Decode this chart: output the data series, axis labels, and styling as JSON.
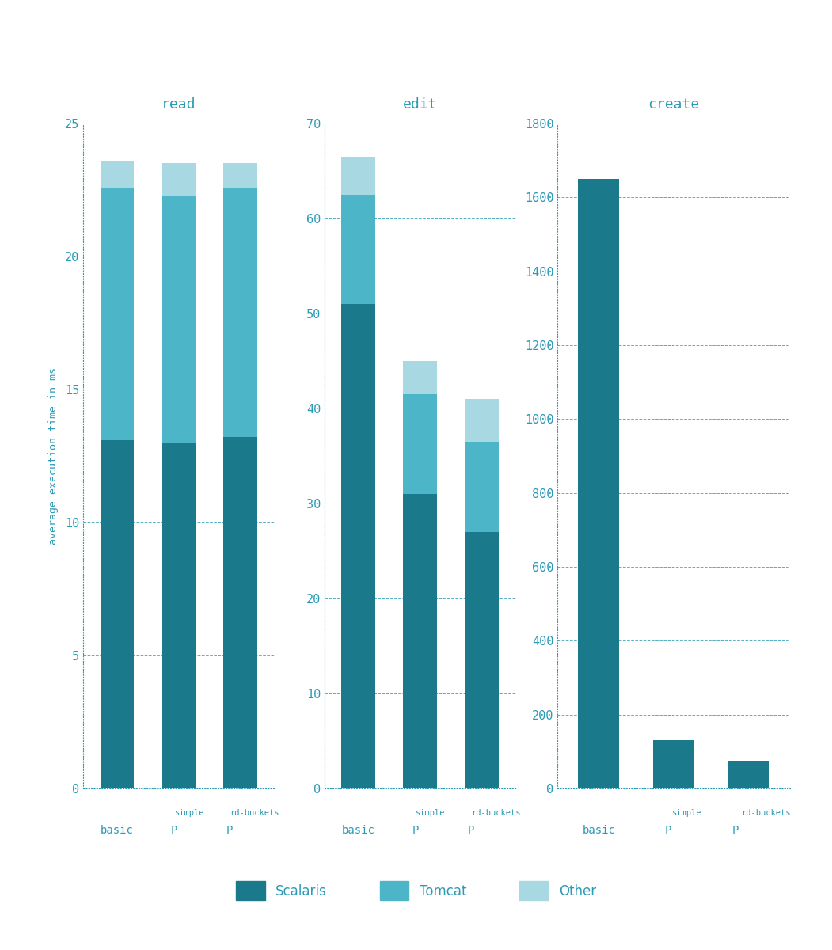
{
  "title_color": "#2A9AB5",
  "background_color": "#ffffff",
  "grid_color": "#2A9AB5",
  "bar_color_scalaris": "#1A7A8C",
  "bar_color_tomcat": "#4DB5C8",
  "bar_color_other": "#A8D8E2",
  "read": {
    "title": "read",
    "categories": [
      "basic",
      "P_simple",
      "P_rd-buckets"
    ],
    "scalaris": [
      13.1,
      13.0,
      13.2
    ],
    "tomcat": [
      9.5,
      9.3,
      9.4
    ],
    "other": [
      1.0,
      1.2,
      0.9
    ],
    "ylim": [
      0,
      25
    ],
    "yticks": [
      0,
      5,
      10,
      15,
      20,
      25
    ]
  },
  "edit": {
    "title": "edit",
    "categories": [
      "basic",
      "P_simple",
      "P_rd-buckets"
    ],
    "scalaris": [
      51.0,
      31.0,
      27.0
    ],
    "tomcat": [
      11.5,
      10.5,
      9.5
    ],
    "other": [
      4.0,
      3.5,
      4.5
    ],
    "ylim": [
      0,
      70
    ],
    "yticks": [
      0,
      10,
      20,
      30,
      40,
      50,
      60,
      70
    ]
  },
  "create": {
    "title": "create",
    "categories": [
      "basic",
      "P_simple",
      "P_rd-buckets"
    ],
    "scalaris": [
      1650,
      130,
      75
    ],
    "tomcat": [
      0,
      0,
      0
    ],
    "other": [
      0,
      0,
      0
    ],
    "ylim": [
      0,
      1800
    ],
    "yticks": [
      0,
      200,
      400,
      600,
      800,
      1000,
      1200,
      1400,
      1600,
      1800
    ]
  },
  "ylabel": "average execution time in ms",
  "fig_width": 10.51,
  "fig_height": 12.0
}
